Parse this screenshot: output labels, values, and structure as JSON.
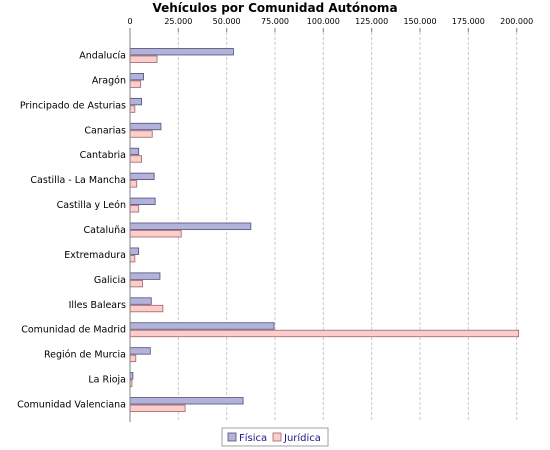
{
  "chart_data": {
    "type": "bar",
    "orientation": "horizontal",
    "title": "Vehículos por Comunidad Autónoma",
    "xlabel": "",
    "ylabel": "",
    "xlim": [
      0,
      210000
    ],
    "x_ticks": [
      0,
      25000,
      50000,
      75000,
      100000,
      125000,
      150000,
      175000,
      200000
    ],
    "x_tick_labels": [
      "0",
      "25.000",
      "50.000",
      "75.000",
      "100.000",
      "125.000",
      "150.000",
      "175.000",
      "200.000"
    ],
    "x_axis_position": "top",
    "grid": "vertical dashed",
    "legend_position": "bottom-center",
    "categories": [
      "Andalucía",
      "Aragón",
      "Principado de Asturias",
      "Canarias",
      "Cantabria",
      "Castilla - La Mancha",
      "Castilla y León",
      "Cataluña",
      "Extremadura",
      "Galicia",
      "Illes Balears",
      "Comunidad de Madrid",
      "Región de Murcia",
      "La Rioja",
      "Comunidad Valenciana"
    ],
    "series": [
      {
        "name": "Física",
        "color": "#b3b3d9",
        "stroke": "#4d4d80",
        "values": [
          53500,
          7000,
          6000,
          16000,
          4500,
          12500,
          13000,
          62500,
          4500,
          15500,
          11000,
          74500,
          10500,
          1500,
          58500
        ]
      },
      {
        "name": "Jurídica",
        "color": "#ffcccc",
        "stroke": "#996666",
        "values": [
          14000,
          5500,
          2500,
          11500,
          6000,
          3500,
          4500,
          26500,
          2500,
          6500,
          17000,
          201000,
          3000,
          1000,
          28500
        ]
      }
    ]
  }
}
